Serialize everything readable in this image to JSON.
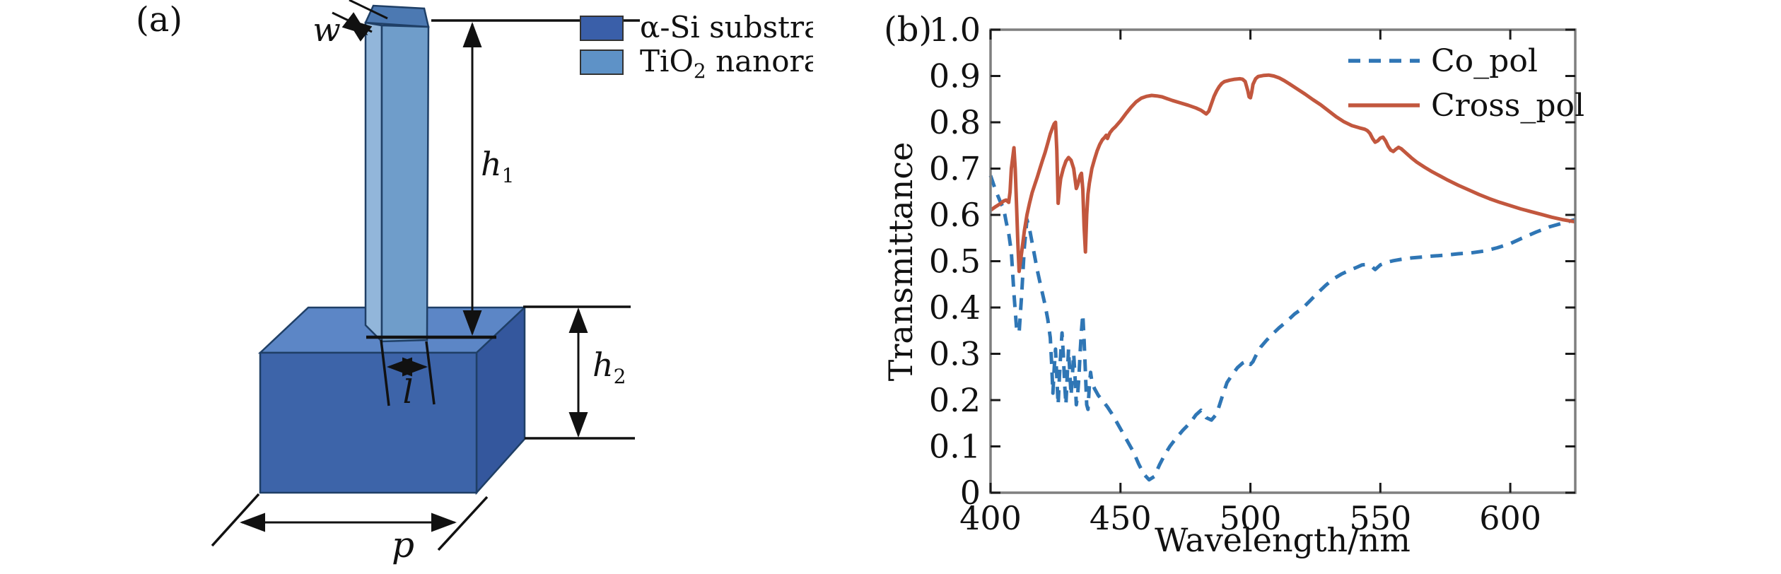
{
  "panel_a": {
    "label": "(a)",
    "legend": [
      {
        "label": "α-Si substrate",
        "swatch_color": "#3a5fa9"
      },
      {
        "label_base": "TiO",
        "label_sub": "2",
        "label_rest": " nanorad",
        "swatch_color": "#5e92c7"
      }
    ],
    "dims": {
      "w": "w",
      "h1_base": "h",
      "h1_sub": "1",
      "h2_base": "h",
      "h2_sub": "2",
      "l": "l",
      "p": "p"
    },
    "colors": {
      "substrate_top": "#5c86c6",
      "substrate_front": "#3d64a9",
      "substrate_side": "#34579d",
      "rod_top": "#4c79b2",
      "rod_side": "#92b6da",
      "rod_front": "#6f9dca",
      "outline": "#1f3f66",
      "dimension_line": "#111111"
    }
  },
  "panel_b": {
    "label": "(b)"
  },
  "chart_data": {
    "type": "line",
    "title": "",
    "xlabel": "Wavelength/nm",
    "ylabel": "Transmittance",
    "xlim": [
      400,
      625
    ],
    "ylim": [
      0,
      1.0
    ],
    "grid": false,
    "legend_position": "top-right",
    "frame_color": "#7f7f7f",
    "tick_color": "#1a1a1a",
    "text_color": "#111111",
    "xticks": [
      [
        400,
        "400"
      ],
      [
        450,
        "450"
      ],
      [
        500,
        "500"
      ],
      [
        550,
        "550"
      ],
      [
        600,
        "600"
      ]
    ],
    "yticks": [
      [
        0,
        "0"
      ],
      [
        0.1,
        "0.1"
      ],
      [
        0.2,
        "0.2"
      ],
      [
        0.3,
        "0.3"
      ],
      [
        0.4,
        "0.4"
      ],
      [
        0.5,
        "0.5"
      ],
      [
        0.6,
        "0.6"
      ],
      [
        0.7,
        "0.7"
      ],
      [
        0.8,
        "0.8"
      ],
      [
        0.9,
        "0.9"
      ],
      [
        1.0,
        "1.0"
      ]
    ],
    "series": [
      {
        "name": "Co_pol",
        "color": "#2f76b5",
        "style": "dashed",
        "points": [
          [
            400,
            0.685
          ],
          [
            402,
            0.652
          ],
          [
            404,
            0.625
          ],
          [
            405,
            0.615
          ],
          [
            406,
            0.585
          ],
          [
            407,
            0.56
          ],
          [
            408,
            0.52
          ],
          [
            409,
            0.43
          ],
          [
            410,
            0.355
          ],
          [
            411,
            0.345
          ],
          [
            412,
            0.43
          ],
          [
            413,
            0.53
          ],
          [
            414,
            0.59
          ],
          [
            415,
            0.57
          ],
          [
            416,
            0.54
          ],
          [
            417,
            0.51
          ],
          [
            418,
            0.48
          ],
          [
            419,
            0.455
          ],
          [
            420,
            0.43
          ],
          [
            421,
            0.405
          ],
          [
            422,
            0.375
          ],
          [
            423,
            0.335
          ],
          [
            423.5,
            0.28
          ],
          [
            424,
            0.215
          ],
          [
            424.5,
            0.27
          ],
          [
            425,
            0.31
          ],
          [
            425.5,
            0.25
          ],
          [
            426,
            0.19
          ],
          [
            426.5,
            0.25
          ],
          [
            427,
            0.3
          ],
          [
            427.5,
            0.345
          ],
          [
            428,
            0.3
          ],
          [
            428.5,
            0.235
          ],
          [
            429,
            0.19
          ],
          [
            429.5,
            0.25
          ],
          [
            430,
            0.31
          ],
          [
            430.5,
            0.26
          ],
          [
            431,
            0.21
          ],
          [
            431.5,
            0.255
          ],
          [
            432,
            0.3
          ],
          [
            432.5,
            0.25
          ],
          [
            433,
            0.19
          ],
          [
            433.5,
            0.21
          ],
          [
            434,
            0.25
          ],
          [
            434.5,
            0.305
          ],
          [
            435,
            0.35
          ],
          [
            435.5,
            0.385
          ],
          [
            436,
            0.33
          ],
          [
            436.5,
            0.26
          ],
          [
            437,
            0.19
          ],
          [
            437.5,
            0.18
          ],
          [
            438,
            0.23
          ],
          [
            438.5,
            0.26
          ],
          [
            439,
            0.24
          ],
          [
            440,
            0.225
          ],
          [
            441.5,
            0.21
          ],
          [
            443,
            0.2
          ],
          [
            445,
            0.185
          ],
          [
            447,
            0.168
          ],
          [
            449,
            0.148
          ],
          [
            451,
            0.128
          ],
          [
            453,
            0.108
          ],
          [
            455,
            0.088
          ],
          [
            457,
            0.062
          ],
          [
            459,
            0.04
          ],
          [
            461,
            0.028
          ],
          [
            463,
            0.035
          ],
          [
            465,
            0.06
          ],
          [
            467,
            0.082
          ],
          [
            469,
            0.1
          ],
          [
            471,
            0.115
          ],
          [
            474,
            0.135
          ],
          [
            477,
            0.152
          ],
          [
            479,
            0.168
          ],
          [
            481,
            0.178
          ],
          [
            483,
            0.162
          ],
          [
            485,
            0.157
          ],
          [
            487,
            0.17
          ],
          [
            489,
            0.205
          ],
          [
            491,
            0.238
          ],
          [
            493,
            0.255
          ],
          [
            495,
            0.27
          ],
          [
            497,
            0.28
          ],
          [
            499,
            0.285
          ],
          [
            500,
            0.277
          ],
          [
            501,
            0.283
          ],
          [
            502,
            0.295
          ],
          [
            504,
            0.315
          ],
          [
            506,
            0.328
          ],
          [
            508,
            0.34
          ],
          [
            511,
            0.356
          ],
          [
            514,
            0.37
          ],
          [
            517,
            0.386
          ],
          [
            520,
            0.398
          ],
          [
            523,
            0.415
          ],
          [
            526,
            0.432
          ],
          [
            529,
            0.448
          ],
          [
            532,
            0.462
          ],
          [
            535,
            0.472
          ],
          [
            538,
            0.48
          ],
          [
            541,
            0.487
          ],
          [
            543,
            0.492
          ],
          [
            545,
            0.493
          ],
          [
            547,
            0.487
          ],
          [
            548,
            0.482
          ],
          [
            550,
            0.492
          ],
          [
            552,
            0.497
          ],
          [
            555,
            0.501
          ],
          [
            558,
            0.504
          ],
          [
            562,
            0.507
          ],
          [
            566,
            0.509
          ],
          [
            570,
            0.511
          ],
          [
            575,
            0.513
          ],
          [
            580,
            0.516
          ],
          [
            585,
            0.518
          ],
          [
            590,
            0.522
          ],
          [
            595,
            0.529
          ],
          [
            600,
            0.538
          ],
          [
            605,
            0.551
          ],
          [
            610,
            0.563
          ],
          [
            615,
            0.574
          ],
          [
            620,
            0.582
          ],
          [
            625,
            0.59
          ]
        ]
      },
      {
        "name": "Cross_pol",
        "color": "#c2573e",
        "style": "solid",
        "points": [
          [
            400,
            0.61
          ],
          [
            402,
            0.618
          ],
          [
            404,
            0.625
          ],
          [
            405,
            0.63
          ],
          [
            406,
            0.632
          ],
          [
            407,
            0.627
          ],
          [
            407.5,
            0.65
          ],
          [
            408,
            0.7
          ],
          [
            409,
            0.745
          ],
          [
            409.5,
            0.7
          ],
          [
            410,
            0.62
          ],
          [
            410.5,
            0.54
          ],
          [
            411,
            0.478
          ],
          [
            412,
            0.52
          ],
          [
            413,
            0.565
          ],
          [
            414,
            0.6
          ],
          [
            415,
            0.625
          ],
          [
            416,
            0.648
          ],
          [
            417,
            0.665
          ],
          [
            418,
            0.682
          ],
          [
            419,
            0.7
          ],
          [
            420,
            0.718
          ],
          [
            421,
            0.735
          ],
          [
            422,
            0.755
          ],
          [
            423,
            0.775
          ],
          [
            424,
            0.79
          ],
          [
            424.5,
            0.797
          ],
          [
            425,
            0.8
          ],
          [
            425.5,
            0.74
          ],
          [
            426,
            0.625
          ],
          [
            426.5,
            0.655
          ],
          [
            427,
            0.678
          ],
          [
            428,
            0.7
          ],
          [
            429,
            0.716
          ],
          [
            430,
            0.724
          ],
          [
            431,
            0.718
          ],
          [
            432,
            0.7
          ],
          [
            432.5,
            0.678
          ],
          [
            433,
            0.657
          ],
          [
            433.5,
            0.664
          ],
          [
            434,
            0.675
          ],
          [
            434.5,
            0.685
          ],
          [
            435,
            0.69
          ],
          [
            435.5,
            0.655
          ],
          [
            436,
            0.575
          ],
          [
            436.5,
            0.52
          ],
          [
            437,
            0.6
          ],
          [
            437.5,
            0.645
          ],
          [
            438,
            0.668
          ],
          [
            439,
            0.7
          ],
          [
            440,
            0.72
          ],
          [
            441,
            0.738
          ],
          [
            442,
            0.752
          ],
          [
            443,
            0.762
          ],
          [
            444,
            0.768
          ],
          [
            444.5,
            0.772
          ],
          [
            445,
            0.765
          ],
          [
            445.5,
            0.772
          ],
          [
            446,
            0.778
          ],
          [
            447,
            0.785
          ],
          [
            448,
            0.79
          ],
          [
            450,
            0.803
          ],
          [
            452,
            0.818
          ],
          [
            454,
            0.832
          ],
          [
            456,
            0.844
          ],
          [
            458,
            0.852
          ],
          [
            460,
            0.856
          ],
          [
            462,
            0.858
          ],
          [
            464,
            0.857
          ],
          [
            466,
            0.855
          ],
          [
            468,
            0.851
          ],
          [
            470,
            0.847
          ],
          [
            473,
            0.842
          ],
          [
            476,
            0.837
          ],
          [
            479,
            0.831
          ],
          [
            481,
            0.826
          ],
          [
            482,
            0.822
          ],
          [
            483,
            0.818
          ],
          [
            484,
            0.824
          ],
          [
            485,
            0.84
          ],
          [
            486,
            0.856
          ],
          [
            487,
            0.868
          ],
          [
            488,
            0.877
          ],
          [
            489,
            0.884
          ],
          [
            490,
            0.888
          ],
          [
            492,
            0.891
          ],
          [
            494,
            0.893
          ],
          [
            496,
            0.894
          ],
          [
            497,
            0.893
          ],
          [
            498,
            0.888
          ],
          [
            499,
            0.868
          ],
          [
            499.5,
            0.855
          ],
          [
            500,
            0.853
          ],
          [
            500.5,
            0.865
          ],
          [
            501,
            0.882
          ],
          [
            502,
            0.894
          ],
          [
            503,
            0.899
          ],
          [
            505,
            0.901
          ],
          [
            507,
            0.902
          ],
          [
            509,
            0.9
          ],
          [
            511,
            0.896
          ],
          [
            513,
            0.89
          ],
          [
            515,
            0.883
          ],
          [
            518,
            0.872
          ],
          [
            521,
            0.861
          ],
          [
            524,
            0.849
          ],
          [
            527,
            0.838
          ],
          [
            530,
            0.825
          ],
          [
            533,
            0.812
          ],
          [
            536,
            0.801
          ],
          [
            539,
            0.793
          ],
          [
            542,
            0.788
          ],
          [
            544,
            0.785
          ],
          [
            545,
            0.782
          ],
          [
            546,
            0.776
          ],
          [
            547,
            0.765
          ],
          [
            548,
            0.757
          ],
          [
            549,
            0.76
          ],
          [
            550,
            0.766
          ],
          [
            551,
            0.768
          ],
          [
            552,
            0.76
          ],
          [
            553,
            0.748
          ],
          [
            554,
            0.74
          ],
          [
            555,
            0.737
          ],
          [
            556,
            0.742
          ],
          [
            557,
            0.746
          ],
          [
            558,
            0.743
          ],
          [
            560,
            0.733
          ],
          [
            562,
            0.723
          ],
          [
            564,
            0.714
          ],
          [
            567,
            0.703
          ],
          [
            570,
            0.693
          ],
          [
            573,
            0.684
          ],
          [
            576,
            0.675
          ],
          [
            580,
            0.664
          ],
          [
            584,
            0.654
          ],
          [
            588,
            0.644
          ],
          [
            592,
            0.635
          ],
          [
            596,
            0.627
          ],
          [
            600,
            0.62
          ],
          [
            604,
            0.613
          ],
          [
            608,
            0.607
          ],
          [
            612,
            0.601
          ],
          [
            616,
            0.595
          ],
          [
            620,
            0.59
          ],
          [
            625,
            0.585
          ]
        ]
      }
    ]
  }
}
